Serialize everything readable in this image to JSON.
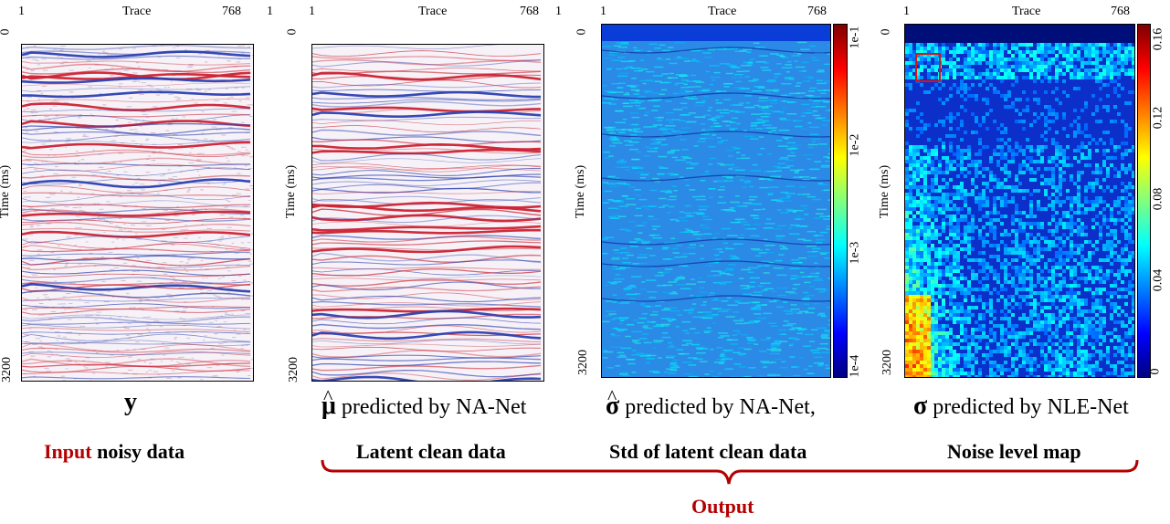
{
  "panels": [
    {
      "x_axis": {
        "title": "Trace",
        "min": "1",
        "max": "768"
      },
      "y_axis": {
        "title": "Time (ms)",
        "min": "0",
        "max": "3200"
      },
      "image_kind": "seismic-noisy",
      "caption_symbol": "y",
      "caption_text": "",
      "bottom_label_highlight": "Input",
      "bottom_label_rest": " noisy data"
    },
    {
      "x_axis": {
        "title": "Trace",
        "min": "1",
        "max": "768"
      },
      "y_axis": {
        "title": "Time (ms)",
        "min": "0",
        "max": "3200"
      },
      "image_kind": "seismic-clean",
      "caption_symbol": "μ",
      "caption_text": " predicted by NA-Net",
      "bottom_label": "Latent clean data"
    },
    {
      "x_axis": {
        "title": "Trace",
        "min": "1",
        "max": "768"
      },
      "y_axis": {
        "title": "Time (ms)",
        "min": "0",
        "max": "3200"
      },
      "image_kind": "std-map",
      "colorbar_ticks": [
        "1e-1",
        "1e-2",
        "1e-3",
        "1e-4"
      ],
      "caption_symbol": "σ",
      "caption_text": " predicted by NA-Net,",
      "bottom_label": "Std of latent clean data"
    },
    {
      "x_axis": {
        "title": "Trace",
        "min": "1",
        "max": "768"
      },
      "y_axis": {
        "title": "Time (ms)",
        "min": "0",
        "max": "3200"
      },
      "image_kind": "noise-map",
      "colorbar_ticks": [
        "0.16",
        "0.12",
        "0.08",
        "0.04",
        "0"
      ],
      "caption_symbol": "σ",
      "caption_text": " predicted by NLE-Net",
      "bottom_label": "Noise level map"
    }
  ],
  "output_label": "Output",
  "hat_glyph": "^",
  "colors": {
    "accent_red": "#b40000",
    "highlight_box": "#e01010"
  }
}
